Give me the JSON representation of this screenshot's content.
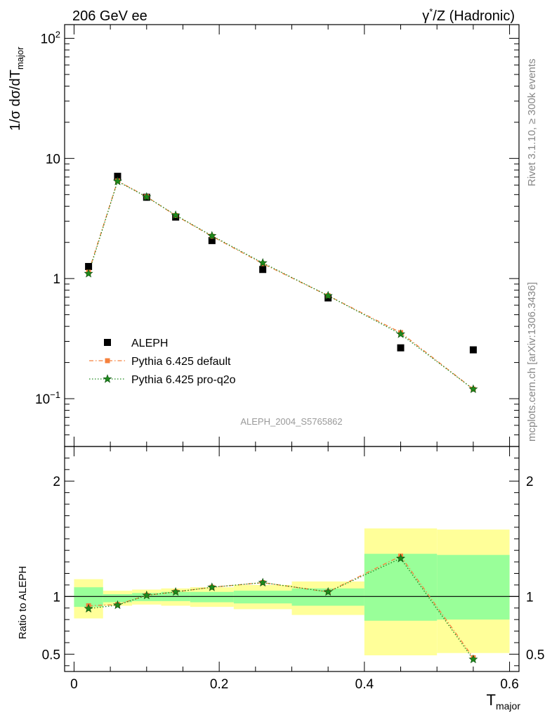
{
  "header": {
    "left": "206 GeV ee",
    "right_prefix": "γ",
    "right_sup": "*",
    "right_suffix": "/Z (Hadronic)"
  },
  "side": {
    "rivet": "Rivet 3.1.10, ≥ 300k events",
    "mcplots": "mcplots.cern.ch [arXiv:1306.3436]"
  },
  "watermark": "ALEPH_2004_S5765862",
  "chart_data": [
    {
      "type": "scatter",
      "yscale": "log",
      "ylabel_prefix": "1/σ  dσ/dT",
      "ylabel_sub": "major",
      "xlim": [
        -0.013,
        0.613
      ],
      "ylim": [
        0.04,
        130
      ],
      "yticks": [
        {
          "value": 100,
          "base": "10",
          "sup": "2"
        },
        {
          "value": 10,
          "base": "10",
          "sup": ""
        },
        {
          "value": 1,
          "base": "1",
          "sup": ""
        },
        {
          "value": 0.1,
          "base": "10",
          "sup": "−1"
        }
      ],
      "legend": {
        "placement": "bottom-left",
        "entries": [
          "ALEPH",
          "Pythia 6.425 default",
          "Pythia 6.425 pro-q2o"
        ]
      },
      "series": [
        {
          "name": "ALEPH",
          "color": "#000000",
          "marker": "square",
          "x": [
            0.02,
            0.06,
            0.1,
            0.14,
            0.19,
            0.26,
            0.35,
            0.45,
            0.55
          ],
          "values": [
            1.26,
            7.1,
            4.75,
            3.25,
            2.07,
            1.19,
            0.69,
            0.265,
            0.255
          ]
        },
        {
          "name": "Pythia 6.425 default",
          "color": "#f5813d",
          "marker": "square",
          "dash": "dashdot",
          "x": [
            0.02,
            0.06,
            0.1,
            0.14,
            0.19,
            0.26,
            0.35,
            0.45,
            0.55
          ],
          "values": [
            1.13,
            6.5,
            4.8,
            3.35,
            2.25,
            1.33,
            0.72,
            0.355,
            0.12
          ]
        },
        {
          "name": "Pythia 6.425 pro-q2o",
          "color": "#1d8a1d",
          "marker": "star",
          "dash": "dotted",
          "x": [
            0.02,
            0.06,
            0.1,
            0.14,
            0.19,
            0.26,
            0.35,
            0.45,
            0.55
          ],
          "values": [
            1.1,
            6.45,
            4.78,
            3.37,
            2.27,
            1.35,
            0.72,
            0.345,
            0.12
          ]
        }
      ]
    },
    {
      "type": "scatter",
      "ylabel": "Ratio to ALEPH",
      "xlabel_prefix": "T",
      "xlabel_sub": "major",
      "xlim": [
        -0.013,
        0.613
      ],
      "ylim": [
        0.35,
        2.3
      ],
      "xticks": [
        "0",
        "0.2",
        "0.4",
        "0.6"
      ],
      "xtick_values": [
        0,
        0.2,
        0.4,
        0.6
      ],
      "yticks": [
        "0.5",
        "1",
        "2"
      ],
      "ytick_values": [
        0.5,
        1,
        2
      ],
      "bands": {
        "edges": [
          0,
          0.04,
          0.08,
          0.12,
          0.16,
          0.22,
          0.3,
          0.4,
          0.5,
          0.6
        ],
        "yellow": [
          [
            0.81,
            1.15
          ],
          [
            0.92,
            1.05
          ],
          [
            0.93,
            1.06
          ],
          [
            0.92,
            1.07
          ],
          [
            0.91,
            1.08
          ],
          [
            0.89,
            1.1
          ],
          [
            0.84,
            1.13
          ],
          [
            0.49,
            1.59
          ],
          [
            0.51,
            1.58
          ]
        ],
        "green": [
          [
            0.91,
            1.08
          ],
          [
            0.95,
            1.02
          ],
          [
            0.96,
            1.03
          ],
          [
            0.96,
            1.04
          ],
          [
            0.95,
            1.04
          ],
          [
            0.94,
            1.05
          ],
          [
            0.92,
            1.07
          ],
          [
            0.79,
            1.37
          ],
          [
            0.8,
            1.36
          ]
        ],
        "yellow_color": "#ffff99",
        "green_color": "#99ff99"
      },
      "series": [
        {
          "name": "Pythia 6.425 default",
          "color": "#f5813d",
          "marker": "square",
          "dash": "dashdot",
          "x": [
            0.02,
            0.06,
            0.1,
            0.14,
            0.19,
            0.26,
            0.35,
            0.45,
            0.55
          ],
          "values": [
            0.92,
            0.93,
            1.01,
            1.04,
            1.08,
            1.12,
            1.04,
            1.35,
            0.47
          ]
        },
        {
          "name": "Pythia 6.425 pro-q2o",
          "color": "#1d8a1d",
          "marker": "star",
          "dash": "dotted",
          "x": [
            0.02,
            0.06,
            0.1,
            0.14,
            0.19,
            0.26,
            0.35,
            0.45,
            0.55
          ],
          "values": [
            0.895,
            0.925,
            1.01,
            1.04,
            1.08,
            1.12,
            1.04,
            1.33,
            0.455
          ]
        }
      ]
    }
  ]
}
